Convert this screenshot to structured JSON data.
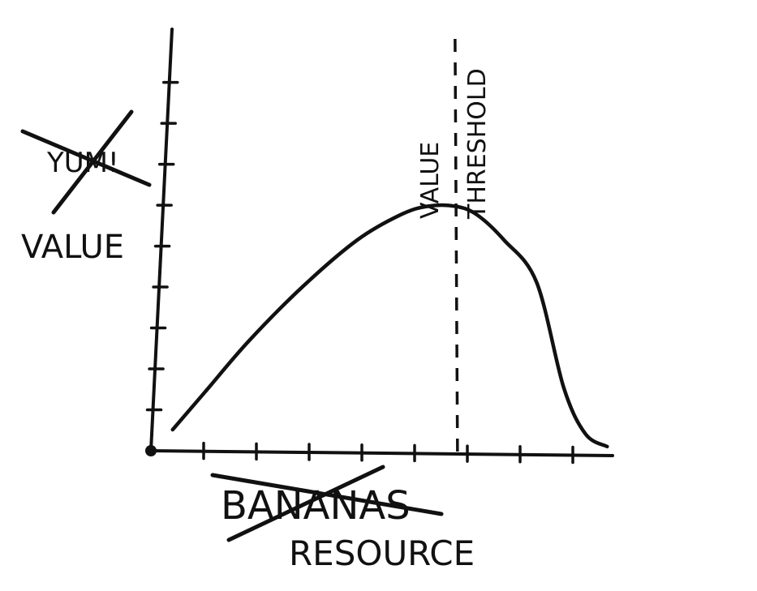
{
  "chart_data": {
    "type": "line",
    "title": "",
    "ylabel": "VALUE",
    "ylabel_crossed_out": "YUM!",
    "xlabel": "RESOURCE",
    "xlabel_crossed_out": "BANANAS",
    "threshold_labels": [
      "VALUE",
      "THRESHOLD"
    ],
    "threshold_x": 5.6,
    "xlim": [
      0,
      8.5
    ],
    "ylim": [
      0,
      10
    ],
    "x_tick_count": 8,
    "y_tick_count": 9,
    "grid": false,
    "series": [
      {
        "x": [
          0.4,
          1.0,
          1.8,
          2.8,
          3.8,
          4.6,
          5.1,
          5.6,
          6.0,
          6.5,
          7.1,
          7.6,
          8.0,
          8.4
        ],
        "values": [
          0.5,
          1.4,
          2.6,
          3.9,
          5.0,
          5.6,
          5.8,
          5.8,
          5.6,
          5.0,
          4.0,
          1.5,
          0.4,
          0.1
        ]
      }
    ]
  }
}
